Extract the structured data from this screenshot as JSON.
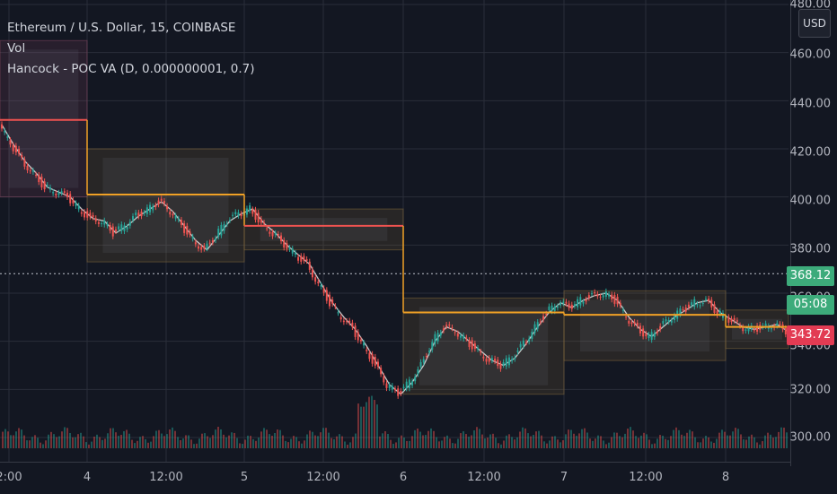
{
  "legend": {
    "symbol": "Ethereum / U.S. Dollar, 15, COINBASE",
    "indicator_vol": "Vol",
    "indicator_poc": "Hancock - POC VA (D, 0.000000001, 0.7)"
  },
  "axis": {
    "currency": "USD",
    "yticks": [
      "480.00",
      "460.00",
      "440.00",
      "420.00",
      "400.00",
      "380.00",
      "360.00",
      "340.00",
      "320.00",
      "300.00"
    ],
    "xticks": [
      "2:00",
      "4",
      "12:00",
      "5",
      "12:00",
      "6",
      "12:00",
      "7",
      "12:00",
      "8"
    ]
  },
  "price_labels": {
    "level_368": "368.12",
    "countdown": "05:08",
    "last_price": "343.72"
  },
  "colors": {
    "background": "#131722",
    "poc_gold": "#f0a126",
    "poc_red": "#ef5350",
    "up_candle": "#26a69a",
    "down_candle": "#ef5350",
    "va_fill": "#8a6d3b",
    "price_tag_green": "#3dab7b",
    "price_tag_red": "#e23b53"
  },
  "chart_data": {
    "type": "candlestick",
    "symbol": "ETHUSD",
    "exchange": "COINBASE",
    "interval": "15",
    "ylim": [
      300,
      480
    ],
    "last_price": 343.72,
    "countdown": "05:08",
    "horizontal_level": 368.12,
    "poc_levels": [
      {
        "day": "3",
        "price": 432
      },
      {
        "day": "4",
        "price": 401
      },
      {
        "day": "5",
        "price": 388
      },
      {
        "day": "6",
        "price": 352
      },
      {
        "day": "7",
        "price": 351
      },
      {
        "day": "8",
        "price": 346
      }
    ],
    "value_areas": [
      {
        "day": "3",
        "high": 465,
        "low": 400
      },
      {
        "day": "4",
        "high": 420,
        "low": 373
      },
      {
        "day": "5",
        "high": 395,
        "low": 378
      },
      {
        "day": "6",
        "high": 358,
        "low": 318
      },
      {
        "day": "7",
        "high": 361,
        "low": 332
      },
      {
        "day": "8",
        "high": 353,
        "low": 337
      }
    ],
    "price_path": [
      430,
      422,
      415,
      410,
      404,
      402,
      400,
      395,
      391,
      390,
      385,
      388,
      392,
      395,
      398,
      394,
      388,
      382,
      378,
      384,
      390,
      393,
      395,
      389,
      385,
      380,
      376,
      372,
      364,
      356,
      350,
      345,
      338,
      330,
      322,
      318,
      323,
      330,
      340,
      346,
      344,
      340,
      336,
      332,
      330,
      333,
      339,
      346,
      352,
      356,
      354,
      357,
      359,
      360,
      357,
      350,
      345,
      342,
      346,
      350,
      353,
      356,
      357,
      352,
      349,
      346,
      345,
      346,
      347,
      344
    ]
  }
}
